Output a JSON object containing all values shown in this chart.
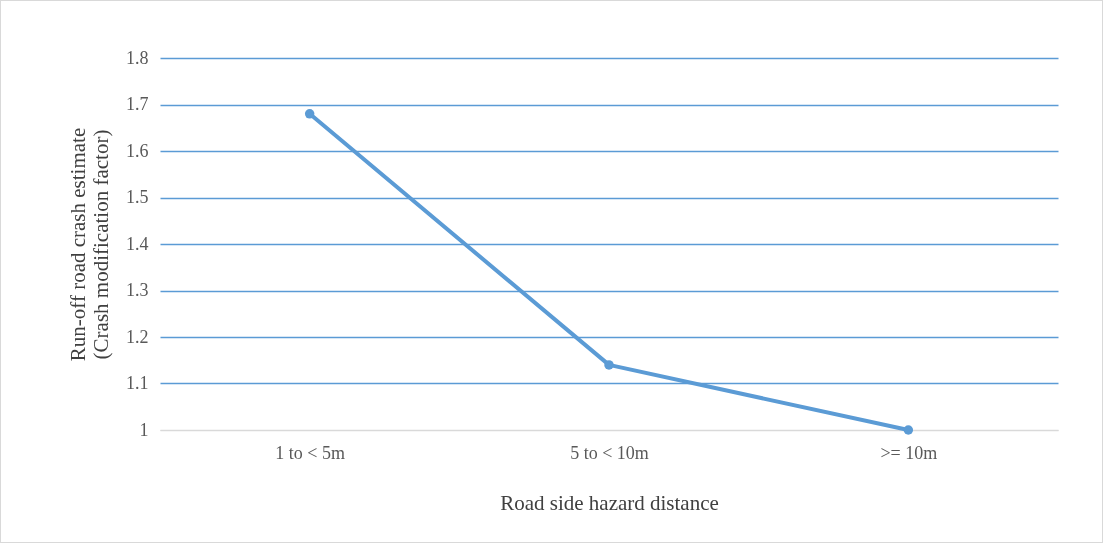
{
  "chart_data": {
    "type": "line",
    "xlabel": "Road side  hazard distance",
    "ylabel": "Run-off  road crash estimate  (Crash modification  factor)",
    "categories": [
      "1 to < 5m",
      "5 to < 10m",
      ">= 10m"
    ],
    "series": [
      {
        "color": "#5b9bd5",
        "values": [
          1.68,
          1.14,
          1.0
        ]
      }
    ],
    "ylim": [
      1,
      1.8
    ],
    "yticks": [
      1,
      1.1,
      1.2,
      1.3,
      1.4,
      1.5,
      1.6,
      1.7,
      1.8
    ],
    "grid": "y",
    "marker": "circle",
    "line_style": "solid"
  }
}
